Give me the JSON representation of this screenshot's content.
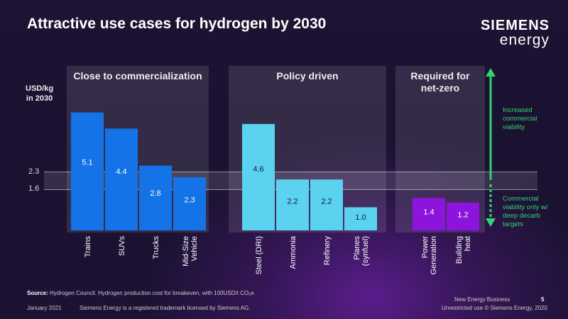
{
  "header": {
    "title": "Attractive use cases for hydrogen by 2030"
  },
  "logo": {
    "line1": "SIEMENS",
    "line2": "energy"
  },
  "colors": {
    "commercial": "#1473e6",
    "policy": "#5ad2f0",
    "netzero": "#8c14dc",
    "arrow": "#2ed56a"
  },
  "panels": [
    {
      "label": "Close to commercialization"
    },
    {
      "label": "Policy driven"
    },
    {
      "label": "Required for\nnet-zero"
    }
  ],
  "annotations": {
    "top": "Increased\ncommercial\nviability",
    "bottom": "Commercial\nviability only w/\ndeep decarb\ntargets"
  },
  "chart_data": {
    "type": "bar",
    "ylabel": "USD/kg\nin 2030",
    "ylim": [
      0,
      5.7
    ],
    "reference_band": [
      1.6,
      2.3
    ],
    "reference_labels": [
      "2.3",
      "1.6"
    ],
    "groups": [
      {
        "name": "Close to commercialization",
        "color": "#1473e6",
        "categories": [
          "Trains",
          "SUVs",
          "Trucks",
          "Mid-Size\nVehicle"
        ],
        "values": [
          5.1,
          4.4,
          2.8,
          2.3
        ],
        "labels": [
          "5.1",
          "4.4",
          "2.8",
          "2.3"
        ]
      },
      {
        "name": "Policy driven",
        "color": "#5ad2f0",
        "categories": [
          "Steel (DRI)",
          "Ammonia",
          "Refinery",
          "Planes\n(synfuel)"
        ],
        "values": [
          4.6,
          2.2,
          2.2,
          1.0
        ],
        "labels": [
          "4.6",
          "2.2",
          "2.2",
          "1.0"
        ]
      },
      {
        "name": "Required for net-zero",
        "color": "#8c14dc",
        "categories": [
          "Power\nGeneration",
          "Building\nheat"
        ],
        "values": [
          1.4,
          1.2
        ],
        "labels": [
          "1.4",
          "1.2"
        ]
      }
    ]
  },
  "footer": {
    "source_label": "Source:",
    "source_text": "Hydrogen Council. Hydrogen production cost for breakeven, with 100USD/t CO₂e",
    "date": "January 2021",
    "trademark": "Siemens Energy is a registered trademark licensed by Siemens AG.",
    "business": "New Energy Business",
    "page": "5",
    "rights": "Unrestricted use © Siemens Energy, 2020"
  }
}
